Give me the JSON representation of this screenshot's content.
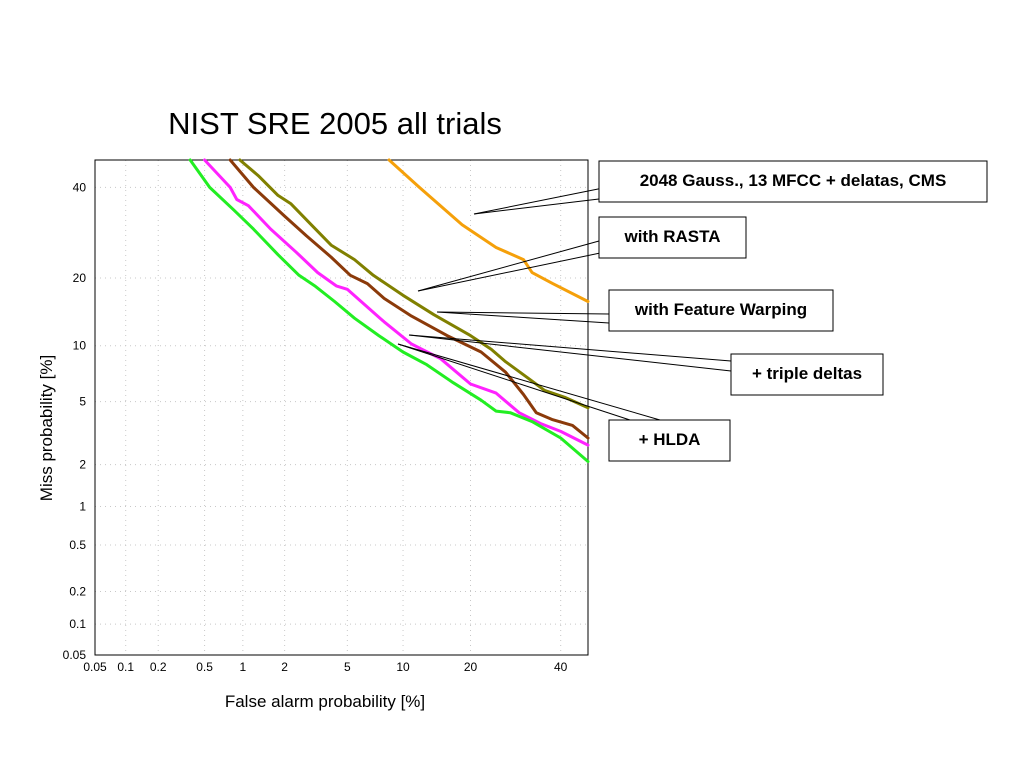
{
  "chart_data": {
    "type": "line",
    "title": "NIST SRE 2005 all trials",
    "xlabel": "False alarm probability [%]",
    "ylabel": "Miss probability [%]",
    "x_scale": "probit",
    "y_scale": "probit",
    "xlim": [
      0.05,
      47
    ],
    "ylim": [
      0.05,
      47
    ],
    "grid": true,
    "x_ticks": [
      0.05,
      0.1,
      0.2,
      0.5,
      1,
      2,
      5,
      10,
      20,
      40
    ],
    "x_tick_labels": [
      "0.05",
      "0.1",
      "0.2",
      "0.5",
      "1",
      "2",
      "5",
      "10",
      "20",
      "40"
    ],
    "y_ticks": [
      0.05,
      0.1,
      0.2,
      0.5,
      1,
      2,
      5,
      10,
      20,
      40
    ],
    "y_tick_labels": [
      "0.05",
      "0.1",
      "0.2",
      "0.5",
      "1",
      "2",
      "5",
      "10",
      "20",
      "40"
    ],
    "series": [
      {
        "name": "2048 Gauss., 13 MFCC + delatas, CMS",
        "color": "#f5a00a",
        "points": [
          [
            8.5,
            47
          ],
          [
            12,
            40
          ],
          [
            18.5,
            31
          ],
          [
            25,
            26
          ],
          [
            31,
            23.5
          ],
          [
            33,
            21
          ],
          [
            38,
            19
          ],
          [
            47,
            16
          ]
        ]
      },
      {
        "name": "with RASTA",
        "color": "#808000",
        "points": [
          [
            0.95,
            47
          ],
          [
            1.3,
            43
          ],
          [
            1.8,
            38
          ],
          [
            2.2,
            36
          ],
          [
            3,
            31
          ],
          [
            4,
            26.5
          ],
          [
            5.5,
            23.5
          ],
          [
            7,
            20.5
          ],
          [
            10,
            17
          ],
          [
            14,
            14
          ],
          [
            20,
            11.2
          ],
          [
            24,
            9.6
          ],
          [
            27,
            8.3
          ],
          [
            32,
            6.8
          ],
          [
            36,
            5.8
          ],
          [
            41,
            5.3
          ],
          [
            47,
            4.6
          ]
        ]
      },
      {
        "name": "with Feature Warping",
        "color": "#8b3a0a",
        "points": [
          [
            0.8,
            47
          ],
          [
            1.2,
            40
          ],
          [
            2,
            33
          ],
          [
            2.8,
            28.5
          ],
          [
            4,
            24
          ],
          [
            5.2,
            20.5
          ],
          [
            6.5,
            19
          ],
          [
            8,
            16.5
          ],
          [
            11,
            13.8
          ],
          [
            16,
            11.2
          ],
          [
            22,
            9.3
          ],
          [
            27,
            7.3
          ],
          [
            31,
            5.5
          ],
          [
            34,
            4.3
          ],
          [
            38,
            3.9
          ],
          [
            43,
            3.6
          ],
          [
            47,
            3.0
          ]
        ]
      },
      {
        "name": "+ triple deltas",
        "color": "#ff22ff",
        "points": [
          [
            0.5,
            47
          ],
          [
            0.8,
            40
          ],
          [
            0.9,
            37
          ],
          [
            1.1,
            35.5
          ],
          [
            1.6,
            30
          ],
          [
            2.4,
            25
          ],
          [
            3.3,
            21
          ],
          [
            4.3,
            18.6
          ],
          [
            5,
            18
          ],
          [
            6,
            16
          ],
          [
            8,
            13
          ],
          [
            11,
            10.2
          ],
          [
            15,
            8.6
          ],
          [
            20,
            6.3
          ],
          [
            25,
            5.6
          ],
          [
            30,
            4.3
          ],
          [
            35,
            3.7
          ],
          [
            40,
            3.3
          ],
          [
            47,
            2.7
          ]
        ]
      },
      {
        "name": "+ HLDA",
        "color": "#22ee22",
        "points": [
          [
            0.38,
            47
          ],
          [
            0.55,
            40
          ],
          [
            0.85,
            34.5
          ],
          [
            1.2,
            30
          ],
          [
            1.8,
            24.5
          ],
          [
            2.5,
            20.5
          ],
          [
            3.2,
            18.5
          ],
          [
            4.2,
            16
          ],
          [
            5.5,
            13.5
          ],
          [
            7.5,
            11.2
          ],
          [
            10,
            9.3
          ],
          [
            13,
            8
          ],
          [
            17,
            6.4
          ],
          [
            22,
            5.1
          ],
          [
            25,
            4.4
          ],
          [
            28,
            4.3
          ],
          [
            33,
            3.8
          ],
          [
            40,
            3.0
          ],
          [
            47,
            2.1
          ]
        ]
      }
    ]
  }
}
